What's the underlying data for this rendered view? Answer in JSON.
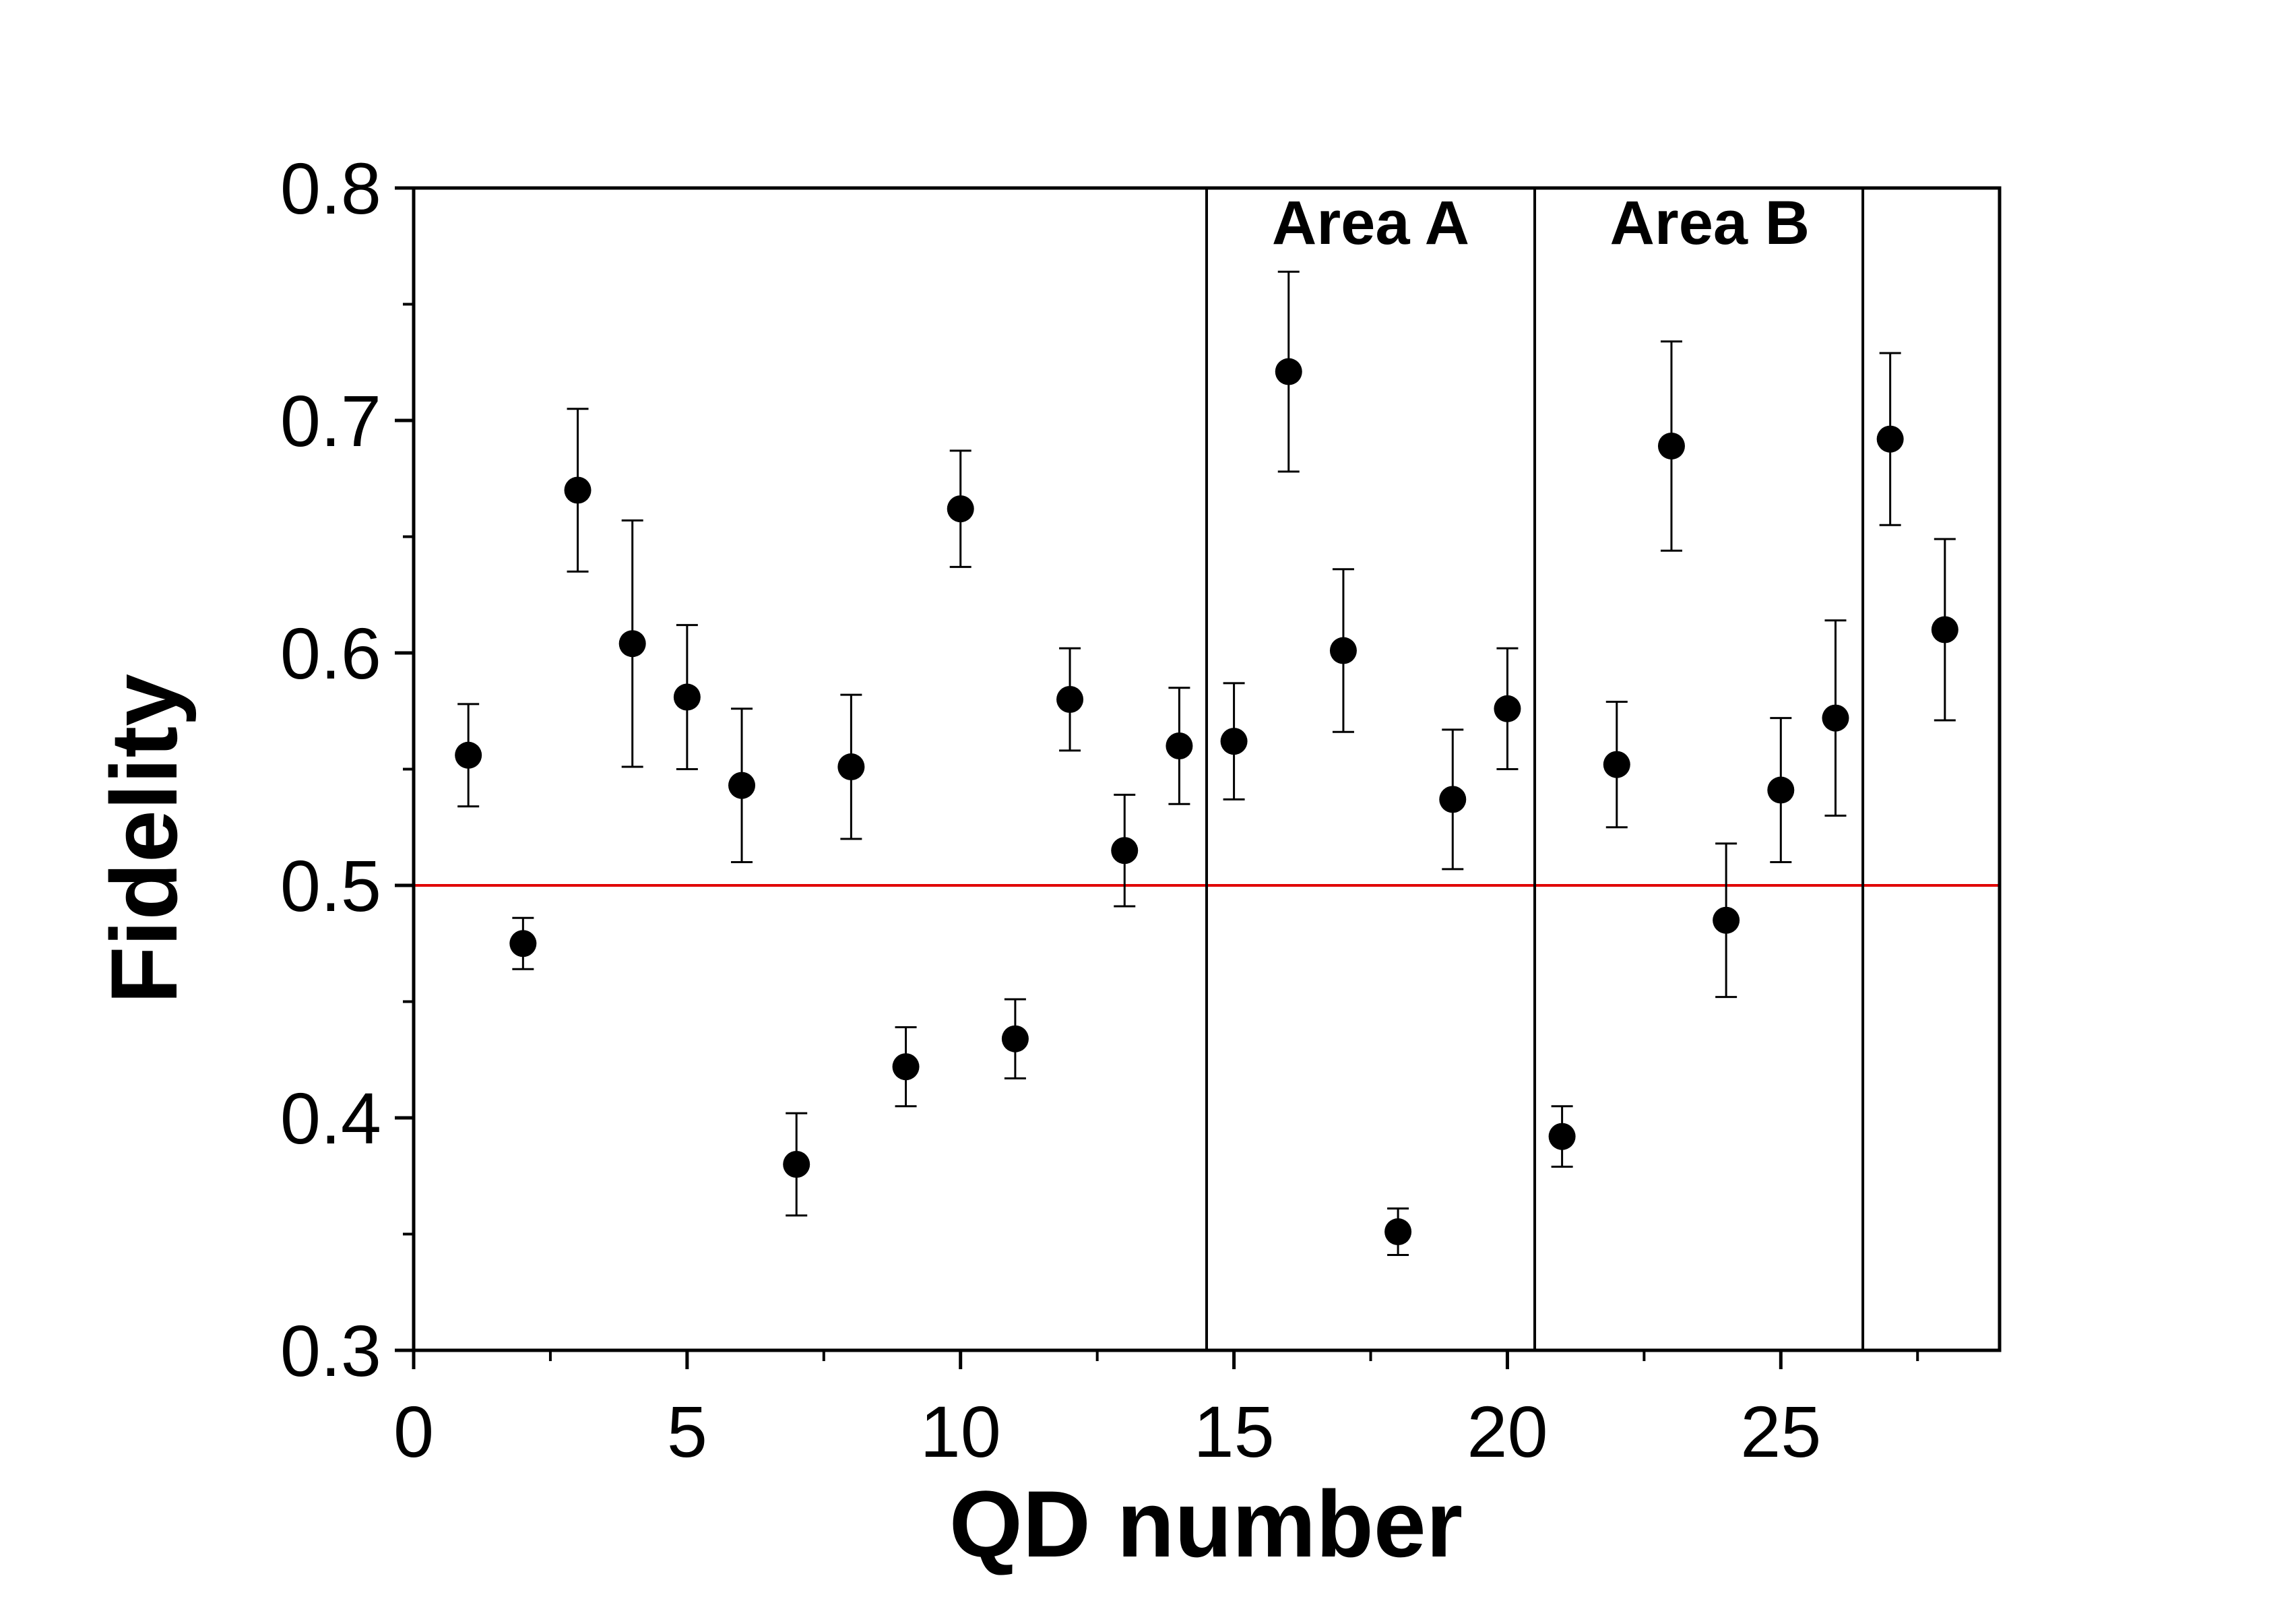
{
  "chart_data": {
    "type": "scatter",
    "title": "",
    "xlabel": "QD number",
    "ylabel": "Fidelity",
    "xlim": [
      0,
      29
    ],
    "ylim": [
      0.3,
      0.8
    ],
    "x_ticks": [
      0,
      5,
      10,
      15,
      20,
      25
    ],
    "x_tick_labels": [
      "0",
      "5",
      "10",
      "15",
      "20",
      "25"
    ],
    "x_minor_ticks": [
      2.5,
      7.5,
      12.5,
      17.5,
      22.5,
      27.5
    ],
    "y_ticks": [
      0.3,
      0.4,
      0.5,
      0.6,
      0.7,
      0.8
    ],
    "y_tick_labels": [
      "0.3",
      "0.4",
      "0.5",
      "0.6",
      "0.7",
      "0.8"
    ],
    "y_minor_ticks": [
      0.35,
      0.45,
      0.55,
      0.65,
      0.75
    ],
    "grid": false,
    "reference_line": {
      "y": 0.5,
      "color": "#e00000"
    },
    "dividers": [
      14.5,
      20.5,
      26.5
    ],
    "annotations": [
      {
        "text": "Area A",
        "x": 17.5,
        "y": 0.776
      },
      {
        "text": "Area B",
        "x": 23.7,
        "y": 0.776
      }
    ],
    "series": [
      {
        "marker_color": "#000000",
        "points": [
          {
            "x": 1,
            "y": 0.556,
            "err_low": 0.534,
            "err_high": 0.578
          },
          {
            "x": 2,
            "y": 0.475,
            "err_low": 0.464,
            "err_high": 0.486
          },
          {
            "x": 3,
            "y": 0.67,
            "err_low": 0.635,
            "err_high": 0.705
          },
          {
            "x": 4,
            "y": 0.604,
            "err_low": 0.551,
            "err_high": 0.657
          },
          {
            "x": 5,
            "y": 0.581,
            "err_low": 0.55,
            "err_high": 0.612
          },
          {
            "x": 6,
            "y": 0.543,
            "err_low": 0.51,
            "err_high": 0.576
          },
          {
            "x": 7,
            "y": 0.38,
            "err_low": 0.358,
            "err_high": 0.402
          },
          {
            "x": 8,
            "y": 0.551,
            "err_low": 0.52,
            "err_high": 0.582
          },
          {
            "x": 9,
            "y": 0.422,
            "err_low": 0.405,
            "err_high": 0.439
          },
          {
            "x": 10,
            "y": 0.662,
            "err_low": 0.637,
            "err_high": 0.687
          },
          {
            "x": 11,
            "y": 0.434,
            "err_low": 0.417,
            "err_high": 0.451
          },
          {
            "x": 12,
            "y": 0.58,
            "err_low": 0.558,
            "err_high": 0.602
          },
          {
            "x": 13,
            "y": 0.515,
            "err_low": 0.491,
            "err_high": 0.539
          },
          {
            "x": 14,
            "y": 0.56,
            "err_low": 0.535,
            "err_high": 0.585
          },
          {
            "x": 15,
            "y": 0.562,
            "err_low": 0.537,
            "err_high": 0.587
          },
          {
            "x": 16,
            "y": 0.721,
            "err_low": 0.678,
            "err_high": 0.764
          },
          {
            "x": 17,
            "y": 0.601,
            "err_low": 0.566,
            "err_high": 0.636
          },
          {
            "x": 18,
            "y": 0.351,
            "err_low": 0.341,
            "err_high": 0.361
          },
          {
            "x": 19,
            "y": 0.537,
            "err_low": 0.507,
            "err_high": 0.567
          },
          {
            "x": 20,
            "y": 0.576,
            "err_low": 0.55,
            "err_high": 0.602
          },
          {
            "x": 21,
            "y": 0.392,
            "err_low": 0.379,
            "err_high": 0.405
          },
          {
            "x": 22,
            "y": 0.552,
            "err_low": 0.525,
            "err_high": 0.579
          },
          {
            "x": 23,
            "y": 0.689,
            "err_low": 0.644,
            "err_high": 0.734
          },
          {
            "x": 24,
            "y": 0.485,
            "err_low": 0.452,
            "err_high": 0.518
          },
          {
            "x": 25,
            "y": 0.541,
            "err_low": 0.51,
            "err_high": 0.572
          },
          {
            "x": 26,
            "y": 0.572,
            "err_low": 0.53,
            "err_high": 0.614
          },
          {
            "x": 27,
            "y": 0.692,
            "err_low": 0.655,
            "err_high": 0.729
          },
          {
            "x": 28,
            "y": 0.61,
            "err_low": 0.571,
            "err_high": 0.649
          }
        ]
      }
    ]
  }
}
